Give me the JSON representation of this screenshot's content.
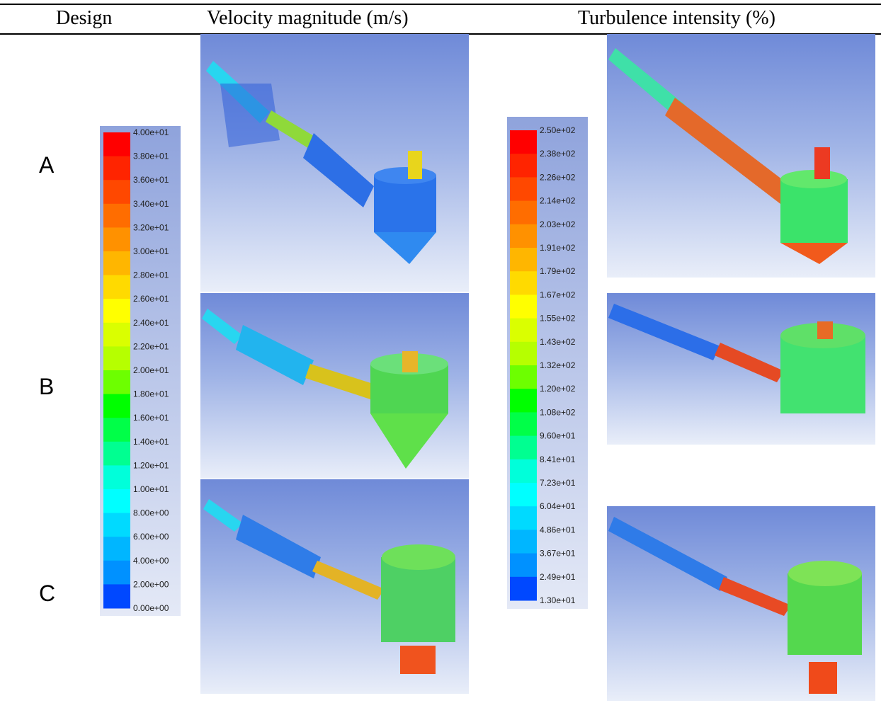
{
  "headers": {
    "design": "Design",
    "velocity": "Velocity magnitude (m/s)",
    "turbulence": "Turbulence intensity (%)"
  },
  "rows": [
    "A",
    "B",
    "C"
  ],
  "colorbars": {
    "velocity": {
      "labels": [
        "4.00e+01",
        "3.80e+01",
        "3.60e+01",
        "3.40e+01",
        "3.20e+01",
        "3.00e+01",
        "2.80e+01",
        "2.60e+01",
        "2.40e+01",
        "2.20e+01",
        "2.00e+01",
        "1.80e+01",
        "1.60e+01",
        "1.40e+01",
        "1.20e+01",
        "1.00e+01",
        "8.00e+00",
        "6.00e+00",
        "4.00e+00",
        "2.00e+00",
        "0.00e+00"
      ]
    },
    "turbulence": {
      "labels": [
        "2.50e+02",
        "2.38e+02",
        "2.26e+02",
        "2.14e+02",
        "2.03e+02",
        "1.91e+02",
        "1.79e+02",
        "1.67e+02",
        "1.55e+02",
        "1.43e+02",
        "1.32e+02",
        "1.20e+02",
        "1.08e+02",
        "9.60e+01",
        "8.41e+01",
        "7.23e+01",
        "6.04e+01",
        "4.86e+01",
        "3.67e+01",
        "2.49e+01",
        "1.30e+01"
      ]
    }
  },
  "colormap": [
    "#ff0000",
    "#ff2400",
    "#ff4800",
    "#ff6d00",
    "#ff9100",
    "#ffb600",
    "#ffda00",
    "#ffff00",
    "#daff00",
    "#b6ff00",
    "#6dff00",
    "#00ff00",
    "#00ff48",
    "#00ff91",
    "#00ffda",
    "#00ffff",
    "#00daff",
    "#00b6ff",
    "#0091ff",
    "#0048ff",
    "#0000ff"
  ]
}
